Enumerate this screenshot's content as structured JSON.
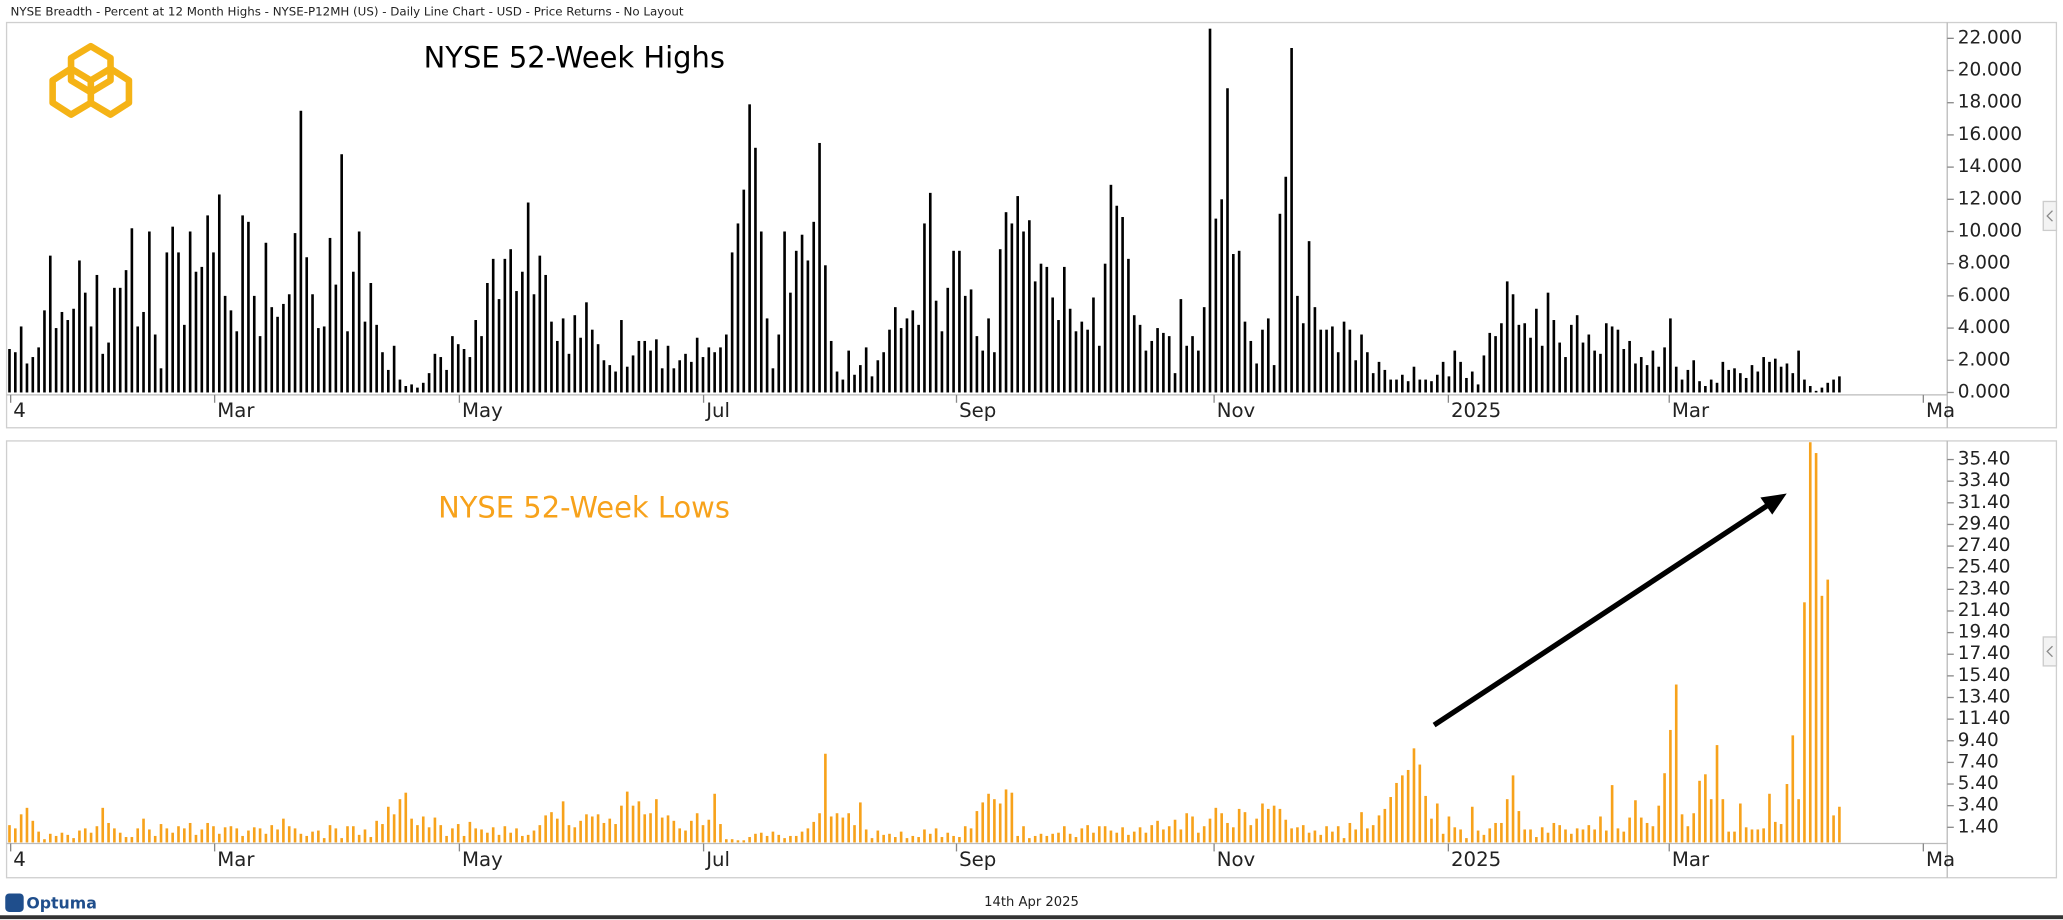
{
  "header": "NYSE Breadth - Percent at 12 Month Highs - NYSE-P12MH (US) - Daily Line Chart - USD - Price Returns - No Layout",
  "chart_data": [
    {
      "type": "bar",
      "title": "NYSE 52-Week Highs",
      "series": [
        {
          "name": "NYSE 52-Week Highs",
          "color": "#000000",
          "values": [
            2.7,
            2.5,
            4.1,
            1.8,
            2.2,
            2.8,
            5.1,
            8.5,
            4.0,
            5.0,
            4.5,
            5.2,
            8.2,
            6.2,
            4.1,
            7.3,
            2.4,
            3.1,
            6.5,
            6.5,
            7.6,
            10.2,
            4.1,
            5.0,
            10.0,
            3.6,
            1.5,
            8.7,
            10.3,
            8.7,
            4.2,
            10.0,
            7.5,
            7.8,
            11.0,
            8.7,
            12.3,
            6.0,
            5.1,
            3.8,
            11.0,
            10.6,
            6.0,
            3.5,
            9.3,
            5.3,
            4.7,
            5.5,
            6.1,
            9.9,
            17.5,
            8.4,
            6.1,
            4.0,
            4.1,
            9.6,
            6.7,
            14.8,
            3.8,
            7.5,
            10.0,
            4.4,
            6.8,
            4.2,
            2.5,
            1.4,
            2.9,
            0.8,
            0.4,
            0.5,
            0.3,
            0.6,
            1.2,
            2.4,
            2.2,
            1.4,
            3.5,
            3.0,
            2.7,
            2.2,
            4.5,
            3.5,
            6.8,
            8.3,
            5.8,
            8.3,
            8.9,
            6.3,
            7.5,
            11.8,
            6.1,
            8.5,
            7.3,
            4.4,
            3.2,
            4.6,
            2.4,
            4.8,
            3.4,
            5.6,
            3.9,
            3.0,
            2.0,
            1.7,
            1.3,
            4.5,
            1.6,
            2.3,
            3.2,
            3.2,
            2.6,
            3.3,
            1.5,
            2.9,
            1.5,
            2.0,
            2.4,
            1.9,
            3.4,
            2.2,
            2.8,
            2.5,
            2.8,
            3.6,
            8.7,
            10.5,
            12.6,
            17.9,
            15.2,
            10.0,
            4.6,
            1.5,
            3.6,
            10.0,
            6.2,
            8.8,
            9.8,
            8.2,
            10.6,
            15.5,
            7.9,
            3.2,
            1.3,
            0.8,
            2.6,
            1.1,
            1.7,
            2.8,
            1.0,
            2.0,
            2.5,
            3.9,
            5.3,
            4.0,
            4.6,
            5.1,
            4.2,
            10.5,
            12.4,
            5.7,
            3.8,
            6.5,
            8.8,
            8.8,
            6.0,
            6.4,
            3.5,
            2.6,
            4.6,
            2.5,
            8.9,
            11.2,
            10.5,
            12.2,
            10.0,
            10.7,
            6.9,
            8.0,
            7.8,
            5.9,
            4.5,
            7.8,
            5.2,
            3.8,
            4.4,
            3.9,
            5.9,
            2.9,
            8.0,
            12.9,
            11.6,
            10.9,
            8.3,
            4.8,
            4.2,
            2.6,
            3.2,
            4.0,
            3.7,
            3.5,
            1.2,
            5.8,
            2.9,
            3.5,
            2.6,
            5.3,
            22.6,
            10.8,
            12.0,
            18.9,
            8.6,
            8.8,
            4.4,
            3.2,
            1.8,
            3.9,
            4.6,
            1.7,
            11.1,
            13.4,
            21.4,
            6.0,
            4.3,
            9.4,
            5.3,
            3.9,
            3.9,
            4.1,
            2.5,
            4.4,
            3.9,
            2.0,
            3.6,
            2.5,
            1.2,
            1.9,
            1.4,
            0.8,
            0.8,
            1.1,
            0.7,
            1.6,
            0.8,
            0.8,
            0.7,
            1.1,
            1.9,
            1.0,
            2.6,
            1.9,
            0.9,
            1.3,
            0.5,
            2.3,
            3.7,
            3.5,
            4.3,
            6.9,
            6.1,
            4.2,
            4.3,
            3.4,
            5.2,
            2.9,
            6.2,
            4.5,
            3.1,
            2.2,
            4.2,
            4.8,
            3.1,
            3.6,
            2.6,
            2.4,
            4.3,
            4.1,
            3.9,
            2.7,
            3.2,
            1.8,
            2.2,
            1.7,
            2.6,
            1.6,
            2.8,
            4.6,
            1.6,
            0.8,
            1.4,
            2.0,
            0.7,
            0.4,
            0.8,
            0.6,
            1.9,
            1.4,
            1.5,
            1.2,
            0.9,
            1.7,
            1.3,
            2.2,
            1.9,
            2.1,
            1.6,
            1.8,
            1.2,
            2.6,
            0.8,
            0.4,
            0.1,
            0.3,
            0.6,
            0.8,
            1.0
          ]
        }
      ],
      "ylim": [
        -0.15,
        22.9
      ],
      "yticks": [
        {
          "value": 0,
          "label": "0.000"
        },
        {
          "value": 2,
          "label": "2.000"
        },
        {
          "value": 4,
          "label": "4.000"
        },
        {
          "value": 6,
          "label": "6.000"
        },
        {
          "value": 8,
          "label": "8.000"
        },
        {
          "value": 10,
          "label": "10.000"
        },
        {
          "value": 12,
          "label": "12.000"
        },
        {
          "value": 14,
          "label": "14.000"
        },
        {
          "value": 16,
          "label": "16.000"
        },
        {
          "value": 18,
          "label": "18.000"
        },
        {
          "value": 20,
          "label": "20.000"
        },
        {
          "value": 22,
          "label": "22.000"
        }
      ],
      "xlim": [
        0,
        333
      ],
      "xticks": [
        {
          "value": 0.7,
          "label": "4"
        },
        {
          "value": 35.7,
          "label": "Mar"
        },
        {
          "value": 77.7,
          "label": "May"
        },
        {
          "value": 119.6,
          "label": "Jul"
        },
        {
          "value": 163,
          "label": "Sep"
        },
        {
          "value": 207.2,
          "label": "Nov"
        },
        {
          "value": 247.4,
          "label": "2025"
        },
        {
          "value": 285.3,
          "label": "Mar"
        },
        {
          "value": 328.9,
          "label": "Ma"
        }
      ]
    },
    {
      "type": "bar",
      "title": "NYSE 52-Week Lows",
      "series": [
        {
          "name": "NYSE 52-Week Lows",
          "color": "#f7a21b",
          "values": [
            1.6,
            1.3,
            2.6,
            3.2,
            2.0,
            1.0,
            0.3,
            0.8,
            0.6,
            0.9,
            0.7,
            0.4,
            1.1,
            1.3,
            0.9,
            1.5,
            3.2,
            1.8,
            1.3,
            0.9,
            0.5,
            0.5,
            1.3,
            2.2,
            1.2,
            0.6,
            1.7,
            1.3,
            0.9,
            1.5,
            1.3,
            1.8,
            0.7,
            1.2,
            1.8,
            1.5,
            0.8,
            1.4,
            1.5,
            1.3,
            0.6,
            1.1,
            1.4,
            1.3,
            0.8,
            1.6,
            1.2,
            2.2,
            1.5,
            1.3,
            0.8,
            0.6,
            1.0,
            1.1,
            0.4,
            1.6,
            1.3,
            0.4,
            1.5,
            1.5,
            0.7,
            1.2,
            0.5,
            2.0,
            1.7,
            3.3,
            2.6,
            4.0,
            4.6,
            2.2,
            1.6,
            2.4,
            1.4,
            2.3,
            1.6,
            0.6,
            1.3,
            1.7,
            0.6,
            1.9,
            1.3,
            1.2,
            0.9,
            1.4,
            0.7,
            1.5,
            0.9,
            1.3,
            0.6,
            0.7,
            1.1,
            1.6,
            2.5,
            2.8,
            2.2,
            3.8,
            1.6,
            1.4,
            2.0,
            2.6,
            2.4,
            2.6,
            1.8,
            2.2,
            1.7,
            3.4,
            4.7,
            3.4,
            3.8,
            2.6,
            2.7,
            4.0,
            2.3,
            2.5,
            2.0,
            1.3,
            1.1,
            2.0,
            2.7,
            1.6,
            2.1,
            4.5,
            1.7,
            0.3,
            0.3,
            0.2,
            0.2,
            0.5,
            0.8,
            0.9,
            0.6,
            1.0,
            0.7,
            0.4,
            0.6,
            0.6,
            1.0,
            1.3,
            1.9,
            2.7,
            8.2,
            2.4,
            2.7,
            2.3,
            2.7,
            1.6,
            3.7,
            1.2,
            0.4,
            1.1,
            0.7,
            0.8,
            0.5,
            1.0,
            0.4,
            0.6,
            0.5,
            1.2,
            0.8,
            1.3,
            0.5,
            0.9,
            0.6,
            0.5,
            1.5,
            1.3,
            2.9,
            3.7,
            4.5,
            4.0,
            3.6,
            4.9,
            4.6,
            0.6,
            1.5,
            0.4,
            0.6,
            0.8,
            0.6,
            0.8,
            0.9,
            1.5,
            0.8,
            0.5,
            1.3,
            1.6,
            0.9,
            1.5,
            1.5,
            1.1,
            0.9,
            1.4,
            0.7,
            1.0,
            1.4,
            0.9,
            1.6,
            2.0,
            1.2,
            1.5,
            2.1,
            1.2,
            2.7,
            2.4,
            0.9,
            1.5,
            2.2,
            3.2,
            2.7,
            1.8,
            1.4,
            3.1,
            2.8,
            1.6,
            2.2,
            3.6,
            3.1,
            3.4,
            3.1,
            2.1,
            1.3,
            1.4,
            1.6,
            0.9,
            1.1,
            0.7,
            1.5,
            1.0,
            1.5,
            0.4,
            1.8,
            1.2,
            2.8,
            1.3,
            1.6,
            2.5,
            3.1,
            4.2,
            5.5,
            6.2,
            6.7,
            8.7,
            7.2,
            4.3,
            2.2,
            3.6,
            0.8,
            2.4,
            1.4,
            1.2,
            0.4,
            3.3,
            1.1,
            0.7,
            1.3,
            1.8,
            1.8,
            4.0,
            6.2,
            2.9,
            1.2,
            1.2,
            0.5,
            1.4,
            0.9,
            1.8,
            1.6,
            1.2,
            0.8,
            1.3,
            1.2,
            1.6,
            1.2,
            2.4,
            1.1,
            5.3,
            1.3,
            1.0,
            2.3,
            3.9,
            2.3,
            1.8,
            1.5,
            3.4,
            6.4,
            10.4,
            14.6,
            2.6,
            1.5,
            2.7,
            5.7,
            6.3,
            4.0,
            9.0,
            4.0,
            1.0,
            1.0,
            3.6,
            1.4,
            1.2,
            1.2,
            1.3,
            4.5,
            1.9,
            1.7,
            5.4,
            9.9,
            4.0,
            22.2,
            37.0,
            36.0,
            22.8,
            24.3,
            2.5,
            3.3
          ]
        }
      ],
      "ylim": [
        -0.1,
        37
      ],
      "yticks": [
        {
          "value": 1.4,
          "label": "1.40"
        },
        {
          "value": 3.4,
          "label": "3.40"
        },
        {
          "value": 5.4,
          "label": "5.40"
        },
        {
          "value": 7.4,
          "label": "7.40"
        },
        {
          "value": 9.4,
          "label": "9.40"
        },
        {
          "value": 11.4,
          "label": "11.40"
        },
        {
          "value": 13.4,
          "label": "13.40"
        },
        {
          "value": 15.4,
          "label": "15.40"
        },
        {
          "value": 17.4,
          "label": "17.40"
        },
        {
          "value": 19.4,
          "label": "19.40"
        },
        {
          "value": 21.4,
          "label": "21.40"
        },
        {
          "value": 23.4,
          "label": "23.40"
        },
        {
          "value": 25.4,
          "label": "25.40"
        },
        {
          "value": 27.4,
          "label": "27.40"
        },
        {
          "value": 29.4,
          "label": "29.40"
        },
        {
          "value": 31.4,
          "label": "31.40"
        },
        {
          "value": 33.4,
          "label": "33.40"
        },
        {
          "value": 35.4,
          "label": "35.40"
        }
      ],
      "xlim": [
        0,
        333
      ],
      "xticks": [
        {
          "value": 0.7,
          "label": "4"
        },
        {
          "value": 35.7,
          "label": "Mar"
        },
        {
          "value": 77.7,
          "label": "May"
        },
        {
          "value": 119.6,
          "label": "Jul"
        },
        {
          "value": 163,
          "label": "Sep"
        },
        {
          "value": 207.2,
          "label": "Nov"
        },
        {
          "value": 247.4,
          "label": "2025"
        },
        {
          "value": 285.3,
          "label": "Mar"
        },
        {
          "value": 328.9,
          "label": "Ma"
        }
      ]
    }
  ],
  "footer": {
    "brand": "Optuma",
    "date": "14th Apr 2025"
  }
}
